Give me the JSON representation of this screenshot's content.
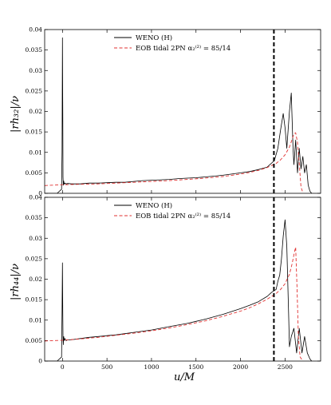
{
  "figure": {
    "xlabel": "u/M",
    "panels": [
      {
        "ylabel": "|rh₃₂|/ν",
        "legend": [
          "WENO (H)",
          "EOB tidal 2PN α₂⁽²⁾ = 85/14"
        ]
      },
      {
        "ylabel": "|rh₄₄|/ν",
        "legend": [
          "WENO (H)",
          "EOB tidal 2PN α₂⁽²⁾ = 85/14"
        ]
      }
    ]
  },
  "chart_data": [
    {
      "type": "line",
      "title": "",
      "xlabel": "u/M",
      "ylabel": "|rh₃₂|/ν",
      "xlim": [
        -200,
        2900
      ],
      "ylim": [
        0,
        0.04
      ],
      "xticks": [
        0,
        500,
        1000,
        1500,
        2000,
        2500
      ],
      "yticks": [
        0,
        0.005,
        0.01,
        0.015,
        0.02,
        0.025,
        0.03,
        0.035,
        0.04
      ],
      "ytick_labels": [
        "0",
        "0.005",
        "0.01",
        "0.015",
        "0.02",
        "0.025",
        "0.03",
        "0.035",
        "0.04"
      ],
      "vline_x": 2375,
      "legend_position": "top-center",
      "series": [
        {
          "name": "WENO (H)",
          "color": "#000000",
          "style": "solid",
          "x": [
            -200,
            -60,
            -10,
            -5,
            0,
            3,
            6,
            10,
            14,
            20,
            28,
            40,
            60,
            100,
            200,
            300,
            400,
            500,
            600,
            700,
            800,
            900,
            1000,
            1100,
            1200,
            1300,
            1400,
            1500,
            1600,
            1700,
            1800,
            1900,
            2000,
            2100,
            2200,
            2300,
            2380,
            2420,
            2450,
            2480,
            2500,
            2520,
            2550,
            2570,
            2590,
            2600,
            2620,
            2640,
            2660,
            2680,
            2700,
            2720,
            2740,
            2760,
            2780,
            2800
          ],
          "y": [
            0,
            0,
            0.001,
            0.01,
            0.038,
            0.02,
            0.004,
            0.002,
            0.003,
            0.0022,
            0.0025,
            0.0023,
            0.0024,
            0.0023,
            0.0023,
            0.0025,
            0.0025,
            0.0026,
            0.0027,
            0.0027,
            0.0029,
            0.0031,
            0.0032,
            0.0033,
            0.0034,
            0.0036,
            0.0037,
            0.0038,
            0.004,
            0.0042,
            0.0044,
            0.0047,
            0.005,
            0.0053,
            0.0058,
            0.0064,
            0.008,
            0.011,
            0.0155,
            0.0195,
            0.016,
            0.011,
            0.02,
            0.0245,
            0.011,
            0.007,
            0.013,
            0.005,
            0.011,
            0.006,
            0.009,
            0.005,
            0.007,
            0.002,
            0.0005,
            0
          ]
        },
        {
          "name": "EOB tidal 2PN α₂⁽²⁾ = 85/14",
          "color": "#e03030",
          "style": "dashed",
          "x": [
            -200,
            0,
            200,
            400,
            600,
            800,
            1000,
            1200,
            1400,
            1600,
            1800,
            2000,
            2100,
            2200,
            2300,
            2400,
            2450,
            2500,
            2550,
            2580,
            2600,
            2620,
            2640,
            2660,
            2680,
            2700
          ],
          "y": [
            0.0019,
            0.0021,
            0.0022,
            0.0023,
            0.0025,
            0.0027,
            0.0029,
            0.0031,
            0.0034,
            0.0037,
            0.0041,
            0.0047,
            0.0051,
            0.0056,
            0.0063,
            0.0073,
            0.0082,
            0.0094,
            0.0113,
            0.0132,
            0.0145,
            0.0148,
            0.0124,
            0.0072,
            0.0015,
            0.0002
          ]
        }
      ]
    },
    {
      "type": "line",
      "title": "",
      "xlabel": "u/M",
      "ylabel": "|rh₄₄|/ν",
      "xlim": [
        -200,
        2900
      ],
      "ylim": [
        0,
        0.04
      ],
      "xticks": [
        0,
        500,
        1000,
        1500,
        2000,
        2500
      ],
      "yticks": [
        0,
        0.005,
        0.01,
        0.015,
        0.02,
        0.025,
        0.03,
        0.035,
        0.04
      ],
      "ytick_labels": [
        "0",
        "0.005",
        "0.01",
        "0.015",
        "0.02",
        "0.025",
        "0.03",
        "0.035",
        "0.04"
      ],
      "vline_x": 2375,
      "legend_position": "top-center",
      "series": [
        {
          "name": "WENO (H)",
          "color": "#000000",
          "style": "solid",
          "x": [
            -200,
            -60,
            -10,
            -5,
            0,
            3,
            6,
            10,
            14,
            20,
            28,
            40,
            60,
            100,
            200,
            300,
            400,
            500,
            600,
            700,
            800,
            900,
            1000,
            1100,
            1200,
            1300,
            1400,
            1500,
            1600,
            1700,
            1800,
            1900,
            2000,
            2100,
            2200,
            2300,
            2350,
            2400,
            2420,
            2440,
            2460,
            2480,
            2500,
            2520,
            2540,
            2550,
            2570,
            2600,
            2630,
            2660,
            2690,
            2720,
            2750,
            2780,
            2800
          ],
          "y": [
            0,
            0,
            0.001,
            0.012,
            0.024,
            0.012,
            0.006,
            0.004,
            0.006,
            0.005,
            0.0055,
            0.005,
            0.0052,
            0.0052,
            0.0055,
            0.0058,
            0.006,
            0.0062,
            0.0064,
            0.0067,
            0.007,
            0.0073,
            0.0076,
            0.008,
            0.0084,
            0.0088,
            0.0092,
            0.0097,
            0.0102,
            0.0108,
            0.0114,
            0.0121,
            0.0128,
            0.0136,
            0.0145,
            0.0158,
            0.0168,
            0.0175,
            0.0195,
            0.021,
            0.025,
            0.0305,
            0.0345,
            0.028,
            0.012,
            0.0035,
            0.006,
            0.008,
            0.002,
            0.008,
            0.002,
            0.006,
            0.002,
            0.0005,
            0
          ]
        },
        {
          "name": "EOB tidal 2PN α₂⁽²⁾ = 85/14",
          "color": "#e03030",
          "style": "dashed",
          "x": [
            -200,
            0,
            200,
            400,
            600,
            800,
            1000,
            1200,
            1400,
            1600,
            1800,
            2000,
            2100,
            2200,
            2300,
            2400,
            2450,
            2500,
            2550,
            2580,
            2600,
            2610,
            2620,
            2635,
            2650,
            2670,
            2700
          ],
          "y": [
            0.0049,
            0.0051,
            0.0054,
            0.0058,
            0.0063,
            0.0068,
            0.0074,
            0.0081,
            0.0089,
            0.0098,
            0.0109,
            0.0122,
            0.013,
            0.014,
            0.0151,
            0.0165,
            0.0175,
            0.0189,
            0.0212,
            0.0238,
            0.026,
            0.027,
            0.0278,
            0.018,
            0.006,
            0.001,
            0
          ]
        }
      ]
    }
  ]
}
